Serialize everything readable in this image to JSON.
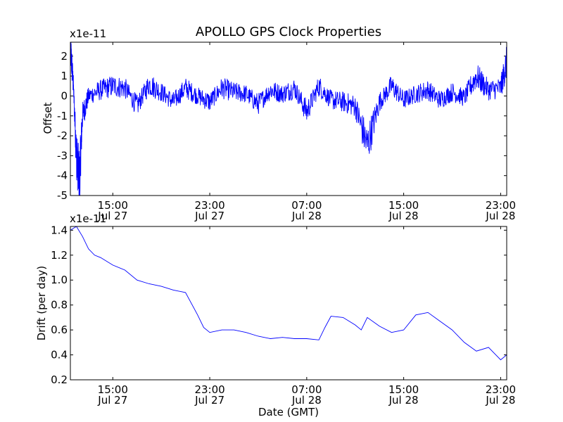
{
  "chart_data": [
    {
      "type": "line",
      "title": "APOLLO GPS Clock Properties",
      "ylabel": "Offset",
      "y_multiplier": "x1e-11",
      "ylim": [
        -5,
        2.7
      ],
      "yticks": [
        {
          "value": 2,
          "label": "2"
        },
        {
          "value": 1,
          "label": "1"
        },
        {
          "value": 0,
          "label": "0"
        },
        {
          "value": -1,
          "label": "-1"
        },
        {
          "value": -2,
          "label": "-2"
        },
        {
          "value": -3,
          "label": "-3"
        },
        {
          "value": -4,
          "label": "-4"
        },
        {
          "value": -5,
          "label": "-5"
        }
      ],
      "xlim": [
        "2012-07-27 11:30",
        "2012-07-28 23:30"
      ],
      "xticks": [
        {
          "value": "2012-07-27 15:00",
          "time": "15:00",
          "date": "Jul 27"
        },
        {
          "value": "2012-07-27 23:00",
          "time": "23:00",
          "date": "Jul 27"
        },
        {
          "value": "2012-07-28 07:00",
          "time": "07:00",
          "date": "Jul 28"
        },
        {
          "value": "2012-07-28 15:00",
          "time": "15:00",
          "date": "Jul 28"
        },
        {
          "value": "2012-07-28 23:00",
          "time": "23:00",
          "date": "Jul 28"
        }
      ],
      "series": [
        {
          "color": "#0000ff",
          "x": [
            "2012-07-27 11:30",
            "2012-07-27 11:45",
            "2012-07-27 12:00",
            "2012-07-27 12:15",
            "2012-07-27 12:30",
            "2012-07-27 13:00",
            "2012-07-27 14:00",
            "2012-07-27 15:00",
            "2012-07-27 16:00",
            "2012-07-27 17:00",
            "2012-07-27 18:00",
            "2012-07-27 19:00",
            "2012-07-27 20:00",
            "2012-07-27 21:00",
            "2012-07-27 22:00",
            "2012-07-27 23:00",
            "2012-07-28 00:00",
            "2012-07-28 01:00",
            "2012-07-28 02:00",
            "2012-07-28 03:00",
            "2012-07-28 04:00",
            "2012-07-28 05:00",
            "2012-07-28 06:00",
            "2012-07-28 07:00",
            "2012-07-28 08:00",
            "2012-07-28 09:00",
            "2012-07-28 10:00",
            "2012-07-28 11:00",
            "2012-07-28 12:00",
            "2012-07-28 13:00",
            "2012-07-28 14:00",
            "2012-07-28 15:00",
            "2012-07-28 16:00",
            "2012-07-28 17:00",
            "2012-07-28 18:00",
            "2012-07-28 19:00",
            "2012-07-28 20:00",
            "2012-07-28 21:00",
            "2012-07-28 22:00",
            "2012-07-28 23:00",
            "2012-07-28 23:30"
          ],
          "values": [
            2.5,
            0.5,
            -3.0,
            -4.2,
            -1.0,
            0.0,
            0.3,
            0.5,
            0.4,
            -0.5,
            0.6,
            0.2,
            -0.3,
            0.4,
            0.0,
            -0.3,
            0.4,
            0.2,
            0.1,
            -0.4,
            0.3,
            0.1,
            0.4,
            -0.8,
            0.5,
            -0.2,
            -0.3,
            -0.5,
            -2.5,
            -0.3,
            0.5,
            -0.2,
            0.1,
            0.3,
            -0.2,
            0.2,
            -0.1,
            1.0,
            0.3,
            0.4,
            1.7
          ]
        }
      ]
    },
    {
      "type": "line",
      "xlabel": "Date (GMT)",
      "ylabel": "Drift (per day)",
      "y_multiplier": "x1e-11",
      "ylim": [
        0.2,
        1.43
      ],
      "yticks": [
        {
          "value": 1.4,
          "label": "1.4"
        },
        {
          "value": 1.2,
          "label": "1.2"
        },
        {
          "value": 1.0,
          "label": "1.0"
        },
        {
          "value": 0.8,
          "label": "0.8"
        },
        {
          "value": 0.6,
          "label": "0.6"
        },
        {
          "value": 0.4,
          "label": "0.4"
        },
        {
          "value": 0.2,
          "label": "0.2"
        }
      ],
      "xlim": [
        "2012-07-27 11:30",
        "2012-07-28 23:30"
      ],
      "xticks": [
        {
          "value": "2012-07-27 15:00",
          "time": "15:00",
          "date": "Jul 27"
        },
        {
          "value": "2012-07-27 23:00",
          "time": "23:00",
          "date": "Jul 27"
        },
        {
          "value": "2012-07-28 07:00",
          "time": "07:00",
          "date": "Jul 28"
        },
        {
          "value": "2012-07-28 15:00",
          "time": "15:00",
          "date": "Jul 28"
        },
        {
          "value": "2012-07-28 23:00",
          "time": "23:00",
          "date": "Jul 28"
        }
      ],
      "series": [
        {
          "color": "#0000ff",
          "x": [
            "2012-07-27 11:30",
            "2012-07-27 12:00",
            "2012-07-27 12:30",
            "2012-07-27 13:00",
            "2012-07-27 13:30",
            "2012-07-27 14:00",
            "2012-07-27 15:00",
            "2012-07-27 16:00",
            "2012-07-27 17:00",
            "2012-07-27 18:00",
            "2012-07-27 19:00",
            "2012-07-27 20:00",
            "2012-07-27 21:00",
            "2012-07-27 22:00",
            "2012-07-27 22:30",
            "2012-07-27 23:00",
            "2012-07-28 00:00",
            "2012-07-28 01:00",
            "2012-07-28 02:00",
            "2012-07-28 03:00",
            "2012-07-28 04:00",
            "2012-07-28 05:00",
            "2012-07-28 06:00",
            "2012-07-28 07:00",
            "2012-07-28 08:00",
            "2012-07-28 08:30",
            "2012-07-28 09:00",
            "2012-07-28 10:00",
            "2012-07-28 11:00",
            "2012-07-28 11:30",
            "2012-07-28 12:00",
            "2012-07-28 13:00",
            "2012-07-28 14:00",
            "2012-07-28 15:00",
            "2012-07-28 16:00",
            "2012-07-28 17:00",
            "2012-07-28 18:00",
            "2012-07-28 19:00",
            "2012-07-28 20:00",
            "2012-07-28 21:00",
            "2012-07-28 22:00",
            "2012-07-28 23:00",
            "2012-07-28 23:30"
          ],
          "values": [
            1.4,
            1.43,
            1.35,
            1.25,
            1.2,
            1.18,
            1.12,
            1.08,
            1.0,
            0.97,
            0.95,
            0.92,
            0.9,
            0.72,
            0.62,
            0.58,
            0.6,
            0.6,
            0.58,
            0.55,
            0.53,
            0.54,
            0.53,
            0.53,
            0.52,
            0.62,
            0.71,
            0.7,
            0.64,
            0.6,
            0.7,
            0.63,
            0.58,
            0.6,
            0.72,
            0.74,
            0.67,
            0.6,
            0.5,
            0.43,
            0.46,
            0.36,
            0.4
          ]
        }
      ]
    }
  ]
}
